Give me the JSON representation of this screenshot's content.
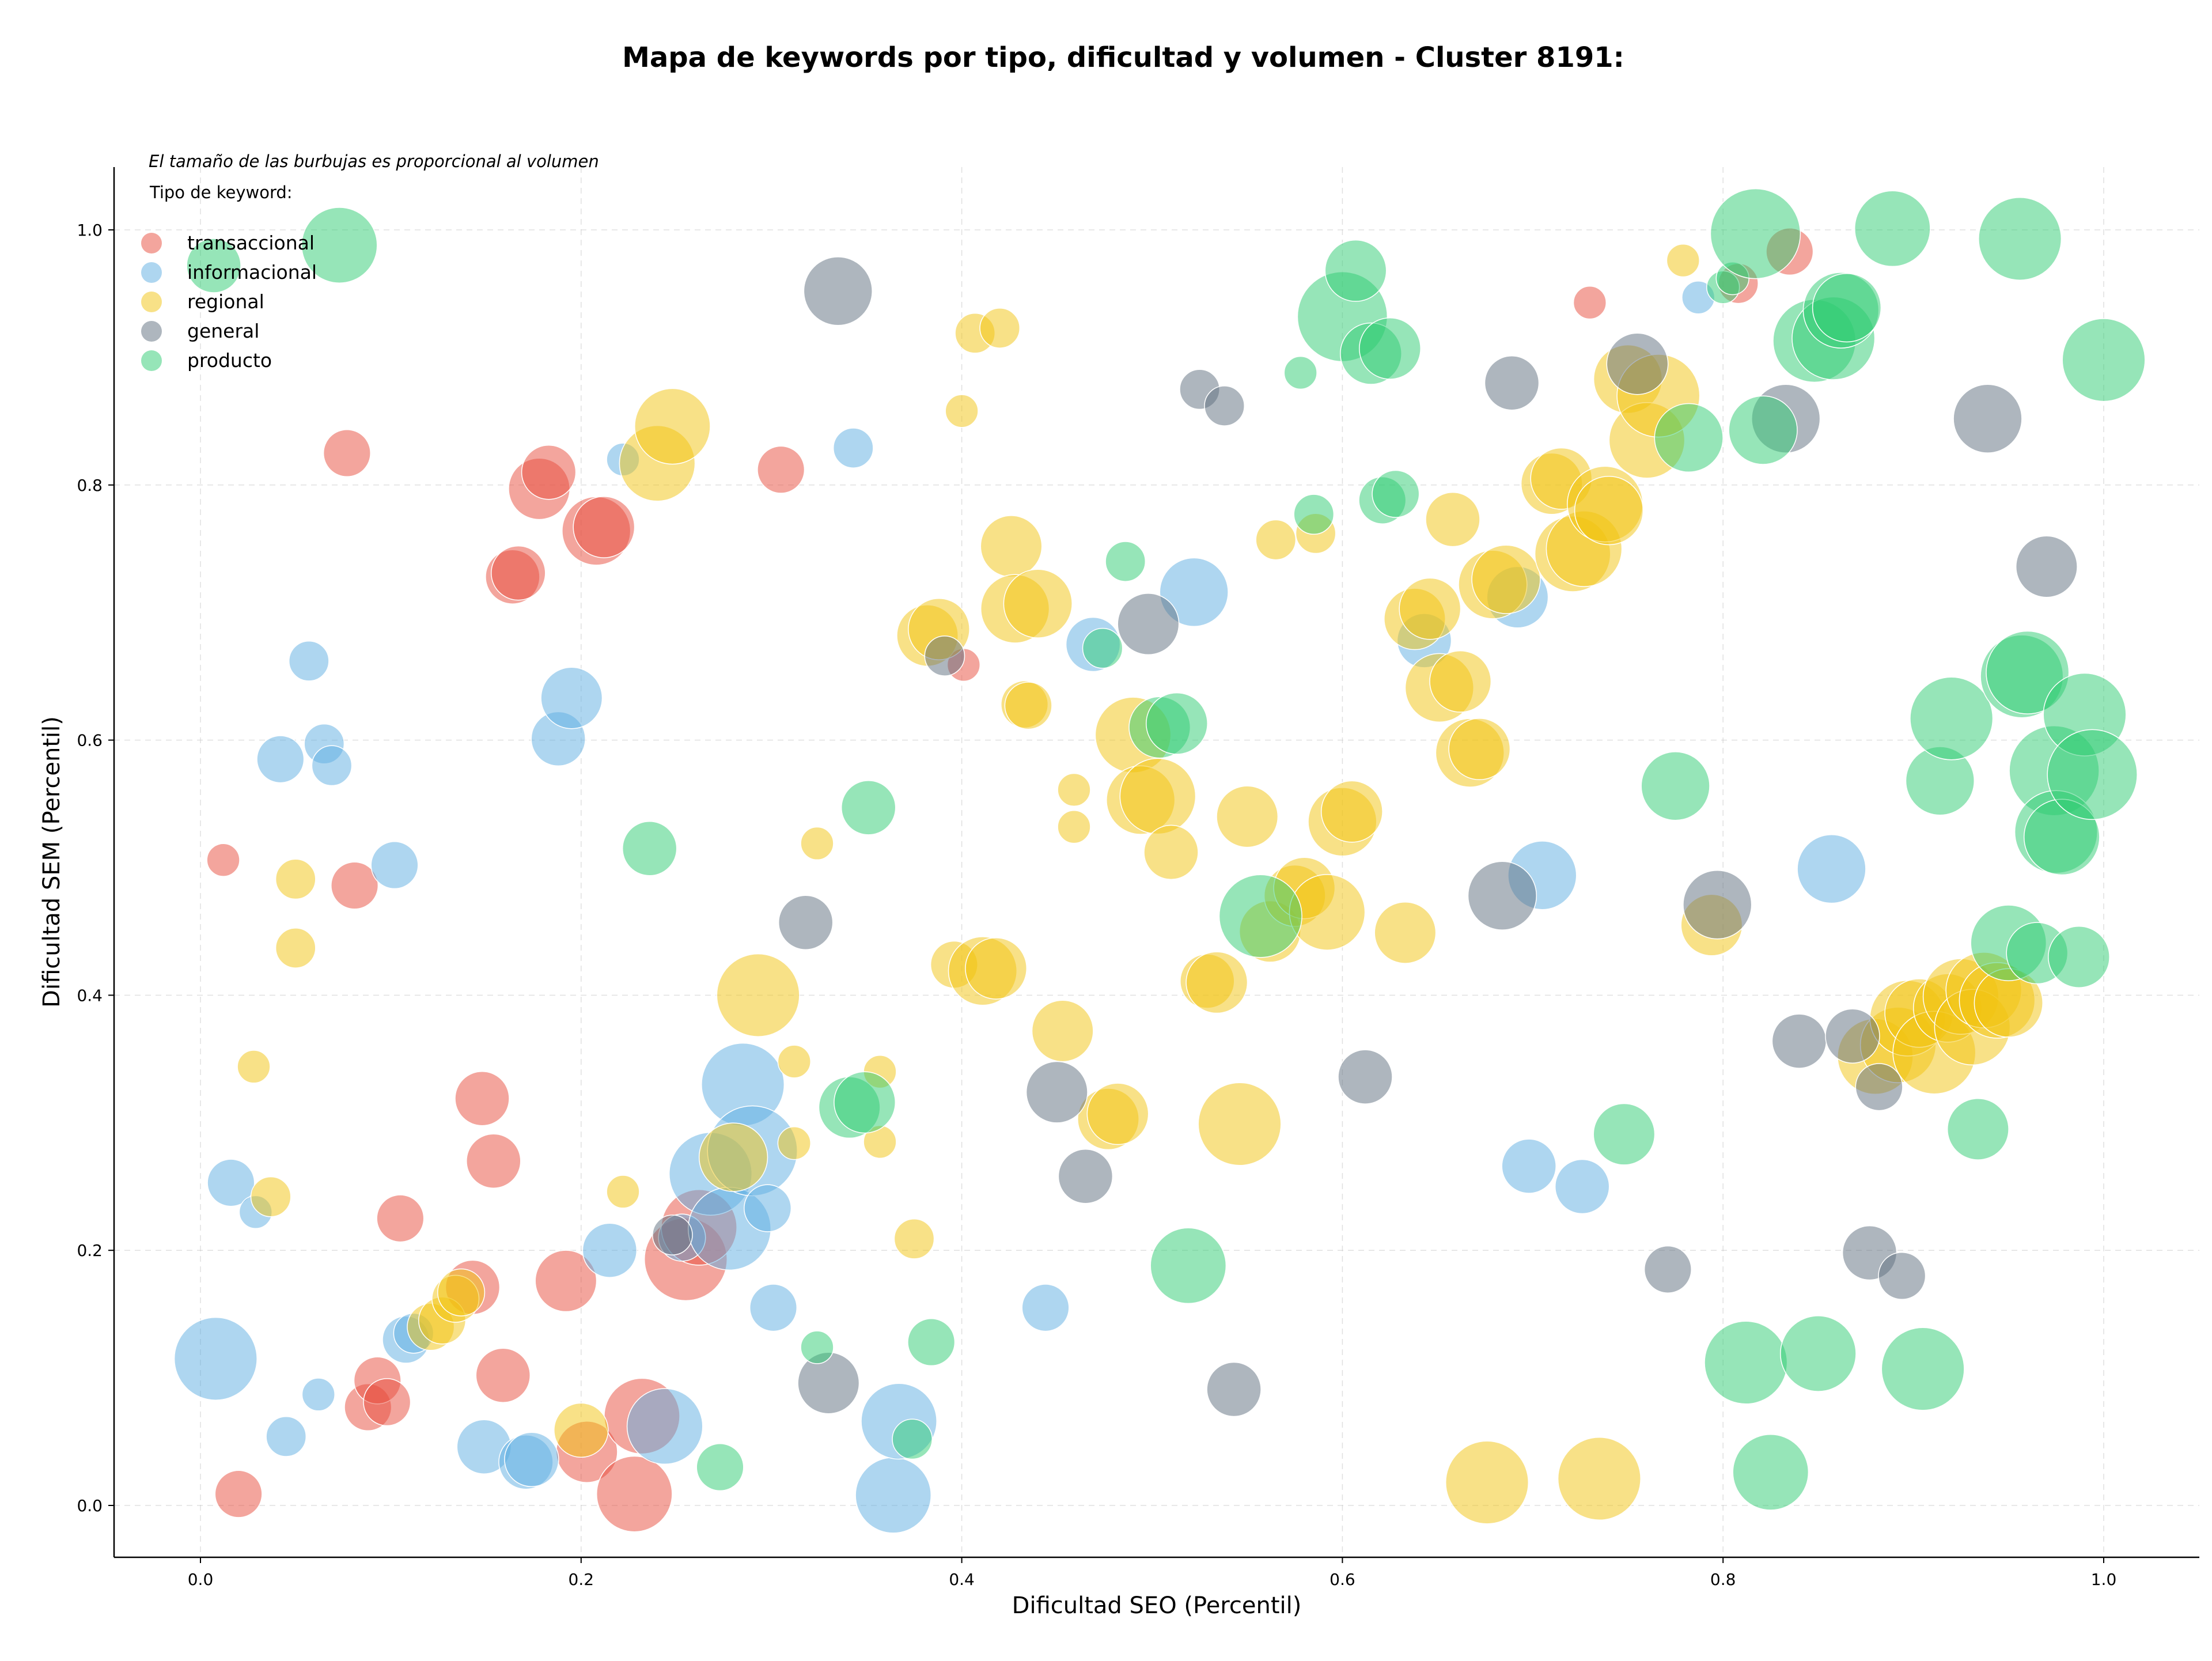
{
  "chart_data": {
    "type": "scatter",
    "title": "Mapa de keywords por tipo, dificultad y volumen - Cluster 8191:",
    "xlabel": "Dificultad SEO (Percentil)",
    "ylabel": "Dificultad SEM (Percentil)",
    "note": "El tamaño de las burbujas es proporcional al volumen",
    "legend_title": "Tipo de keyword:",
    "legend_position": "top-left",
    "xlim": [
      -0.045,
      1.048
    ],
    "ylim": [
      -0.04,
      1.05
    ],
    "xticks": [
      "0.0",
      "0.2",
      "0.4",
      "0.6",
      "0.8",
      "1.0"
    ],
    "yticks": [
      "0.0",
      "0.2",
      "0.4",
      "0.6",
      "0.8",
      "1.0"
    ],
    "grid": true,
    "size_encoding": "volumen (relative 1-10)",
    "series": [
      {
        "name": "transaccional",
        "color": "#e74c3c",
        "points": [
          [
            0.012,
            0.506,
            2
          ],
          [
            0.02,
            0.009,
            4
          ],
          [
            0.077,
            0.825,
            4
          ],
          [
            0.081,
            0.486,
            4
          ],
          [
            0.088,
            0.077,
            4
          ],
          [
            0.093,
            0.098,
            4
          ],
          [
            0.098,
            0.081,
            4
          ],
          [
            0.105,
            0.225,
            4
          ],
          [
            0.143,
            0.171,
            5
          ],
          [
            0.148,
            0.319,
            5
          ],
          [
            0.154,
            0.27,
            5
          ],
          [
            0.159,
            0.102,
            5
          ],
          [
            0.164,
            0.728,
            5
          ],
          [
            0.167,
            0.731,
            5
          ],
          [
            0.178,
            0.797,
            6
          ],
          [
            0.183,
            0.81,
            5
          ],
          [
            0.192,
            0.176,
            6
          ],
          [
            0.203,
            0.042,
            6
          ],
          [
            0.208,
            0.764,
            7
          ],
          [
            0.212,
            0.767,
            6
          ],
          [
            0.228,
            0.009,
            8
          ],
          [
            0.232,
            0.07,
            8
          ],
          [
            0.255,
            0.193,
            9
          ],
          [
            0.262,
            0.218,
            8
          ],
          [
            0.305,
            0.812,
            4
          ],
          [
            0.401,
            0.659,
            2
          ],
          [
            0.73,
            0.943,
            2
          ],
          [
            0.808,
            0.958,
            3
          ],
          [
            0.835,
            0.983,
            4
          ]
        ]
      },
      {
        "name": "informacional",
        "color": "#5dade2",
        "points": [
          [
            0.008,
            0.115,
            9
          ],
          [
            0.016,
            0.253,
            4
          ],
          [
            0.029,
            0.23,
            2
          ],
          [
            0.042,
            0.585,
            4
          ],
          [
            0.045,
            0.054,
            3
          ],
          [
            0.057,
            0.662,
            3
          ],
          [
            0.062,
            0.087,
            2
          ],
          [
            0.065,
            0.597,
            3
          ],
          [
            0.069,
            0.58,
            3
          ],
          [
            0.102,
            0.502,
            4
          ],
          [
            0.108,
            0.13,
            4
          ],
          [
            0.112,
            0.135,
            3
          ],
          [
            0.149,
            0.046,
            5
          ],
          [
            0.171,
            0.034,
            5
          ],
          [
            0.174,
            0.036,
            5
          ],
          [
            0.188,
            0.601,
            5
          ],
          [
            0.195,
            0.633,
            6
          ],
          [
            0.215,
            0.2,
            5
          ],
          [
            0.222,
            0.82,
            2
          ],
          [
            0.244,
            0.062,
            8
          ],
          [
            0.253,
            0.21,
            4
          ],
          [
            0.268,
            0.26,
            9
          ],
          [
            0.278,
            0.217,
            9
          ],
          [
            0.285,
            0.33,
            9
          ],
          [
            0.29,
            0.278,
            10
          ],
          [
            0.298,
            0.233,
            4
          ],
          [
            0.301,
            0.155,
            4
          ],
          [
            0.343,
            0.829,
            3
          ],
          [
            0.364,
            0.008,
            8
          ],
          [
            0.367,
            0.066,
            8
          ],
          [
            0.444,
            0.155,
            4
          ],
          [
            0.469,
            0.675,
            5
          ],
          [
            0.522,
            0.716,
            7
          ],
          [
            0.643,
            0.678,
            5
          ],
          [
            0.692,
            0.712,
            6
          ],
          [
            0.698,
            0.266,
            5
          ],
          [
            0.705,
            0.494,
            7
          ],
          [
            0.726,
            0.25,
            5
          ],
          [
            0.787,
            0.947,
            2
          ],
          [
            0.857,
            0.499,
            7
          ]
        ]
      },
      {
        "name": "regional",
        "color": "#f1c40f",
        "points": [
          [
            0.028,
            0.344,
            2
          ],
          [
            0.037,
            0.242,
            3
          ],
          [
            0.05,
            0.491,
            3
          ],
          [
            0.05,
            0.437,
            3
          ],
          [
            0.121,
            0.14,
            4
          ],
          [
            0.127,
            0.145,
            4
          ],
          [
            0.134,
            0.162,
            4
          ],
          [
            0.137,
            0.167,
            4
          ],
          [
            0.2,
            0.059,
            5
          ],
          [
            0.222,
            0.246,
            2
          ],
          [
            0.24,
            0.817,
            8
          ],
          [
            0.248,
            0.846,
            8
          ],
          [
            0.28,
            0.273,
            7
          ],
          [
            0.293,
            0.4,
            9
          ],
          [
            0.312,
            0.348,
            2
          ],
          [
            0.312,
            0.284,
            2
          ],
          [
            0.324,
            0.519,
            2
          ],
          [
            0.357,
            0.34,
            2
          ],
          [
            0.357,
            0.285,
            2
          ],
          [
            0.375,
            0.209,
            3
          ],
          [
            0.382,
            0.682,
            6
          ],
          [
            0.388,
            0.687,
            6
          ],
          [
            0.396,
            0.424,
            4
          ],
          [
            0.4,
            0.858,
            2
          ],
          [
            0.407,
            0.919,
            3
          ],
          [
            0.42,
            0.923,
            3
          ],
          [
            0.411,
            0.419,
            7
          ],
          [
            0.418,
            0.421,
            6
          ],
          [
            0.426,
            0.752,
            6
          ],
          [
            0.428,
            0.703,
            7
          ],
          [
            0.44,
            0.707,
            7
          ],
          [
            0.433,
            0.628,
            4
          ],
          [
            0.435,
            0.627,
            4
          ],
          [
            0.453,
            0.372,
            6
          ],
          [
            0.459,
            0.561,
            2
          ],
          [
            0.459,
            0.532,
            2
          ],
          [
            0.477,
            0.303,
            6
          ],
          [
            0.482,
            0.307,
            6
          ],
          [
            0.49,
            0.604,
            8
          ],
          [
            0.494,
            0.553,
            7
          ],
          [
            0.503,
            0.556,
            8
          ],
          [
            0.51,
            0.512,
            5
          ],
          [
            0.529,
            0.411,
            5
          ],
          [
            0.534,
            0.41,
            6
          ],
          [
            0.546,
            0.299,
            9
          ],
          [
            0.55,
            0.54,
            6
          ],
          [
            0.562,
            0.45,
            6
          ],
          [
            0.565,
            0.757,
            3
          ],
          [
            0.575,
            0.478,
            6
          ],
          [
            0.58,
            0.484,
            6
          ],
          [
            0.586,
            0.762,
            3
          ],
          [
            0.592,
            0.465,
            8
          ],
          [
            0.6,
            0.536,
            7
          ],
          [
            0.605,
            0.544,
            6
          ],
          [
            0.633,
            0.449,
            6
          ],
          [
            0.638,
            0.695,
            6
          ],
          [
            0.646,
            0.703,
            6
          ],
          [
            0.651,
            0.641,
            7
          ],
          [
            0.662,
            0.646,
            6
          ],
          [
            0.658,
            0.773,
            5
          ],
          [
            0.667,
            0.59,
            7
          ],
          [
            0.672,
            0.593,
            6
          ],
          [
            0.676,
            0.018,
            9
          ],
          [
            0.679,
            0.722,
            7
          ],
          [
            0.686,
            0.726,
            7
          ],
          [
            0.71,
            0.801,
            6
          ],
          [
            0.715,
            0.805,
            6
          ],
          [
            0.721,
            0.746,
            8
          ],
          [
            0.727,
            0.75,
            8
          ],
          [
            0.738,
            0.785,
            8
          ],
          [
            0.74,
            0.78,
            7
          ],
          [
            0.735,
            0.021,
            9
          ],
          [
            0.75,
            0.883,
            7
          ],
          [
            0.76,
            0.835,
            8
          ],
          [
            0.766,
            0.87,
            9
          ],
          [
            0.779,
            0.976,
            2
          ],
          [
            0.794,
            0.455,
            6
          ],
          [
            0.88,
            0.352,
            8
          ],
          [
            0.892,
            0.361,
            8
          ],
          [
            0.897,
            0.382,
            8
          ],
          [
            0.903,
            0.386,
            7
          ],
          [
            0.911,
            0.355,
            9
          ],
          [
            0.918,
            0.39,
            7
          ],
          [
            0.925,
            0.399,
            8
          ],
          [
            0.931,
            0.375,
            8
          ],
          [
            0.937,
            0.404,
            8
          ],
          [
            0.944,
            0.396,
            8
          ],
          [
            0.95,
            0.394,
            7
          ]
        ]
      },
      {
        "name": "general",
        "color": "#5d6d7e",
        "points": [
          [
            0.248,
            0.212,
            3
          ],
          [
            0.318,
            0.457,
            5
          ],
          [
            0.33,
            0.096,
            6
          ],
          [
            0.335,
            0.952,
            7
          ],
          [
            0.391,
            0.666,
            3
          ],
          [
            0.45,
            0.324,
            6
          ],
          [
            0.465,
            0.258,
            5
          ],
          [
            0.498,
            0.691,
            6
          ],
          [
            0.525,
            0.875,
            3
          ],
          [
            0.538,
            0.862,
            3
          ],
          [
            0.543,
            0.091,
            5
          ],
          [
            0.612,
            0.336,
            5
          ],
          [
            0.684,
            0.478,
            7
          ],
          [
            0.689,
            0.88,
            5
          ],
          [
            0.755,
            0.895,
            6
          ],
          [
            0.771,
            0.185,
            4
          ],
          [
            0.797,
            0.471,
            7
          ],
          [
            0.833,
            0.852,
            7
          ],
          [
            0.84,
            0.364,
            5
          ],
          [
            0.868,
            0.368,
            5
          ],
          [
            0.877,
            0.198,
            5
          ],
          [
            0.882,
            0.328,
            4
          ],
          [
            0.894,
            0.18,
            4
          ],
          [
            0.939,
            0.852,
            7
          ],
          [
            0.97,
            0.736,
            6
          ]
        ]
      },
      {
        "name": "producto",
        "color": "#2ecc71",
        "points": [
          [
            0.007,
            0.972,
            5
          ],
          [
            0.073,
            0.988,
            8
          ],
          [
            0.236,
            0.515,
            5
          ],
          [
            0.273,
            0.03,
            4
          ],
          [
            0.324,
            0.124,
            2
          ],
          [
            0.341,
            0.312,
            6
          ],
          [
            0.349,
            0.316,
            6
          ],
          [
            0.351,
            0.547,
            5
          ],
          [
            0.374,
            0.052,
            3
          ],
          [
            0.384,
            0.128,
            4
          ],
          [
            0.474,
            0.672,
            3
          ],
          [
            0.486,
            0.74,
            3
          ],
          [
            0.504,
            0.61,
            6
          ],
          [
            0.513,
            0.613,
            6
          ],
          [
            0.519,
            0.188,
            8
          ],
          [
            0.557,
            0.462,
            9
          ],
          [
            0.578,
            0.888,
            2
          ],
          [
            0.585,
            0.777,
            3
          ],
          [
            0.6,
            0.932,
            10
          ],
          [
            0.607,
            0.968,
            6
          ],
          [
            0.615,
            0.903,
            6
          ],
          [
            0.621,
            0.788,
            4
          ],
          [
            0.625,
            0.907,
            6
          ],
          [
            0.628,
            0.793,
            4
          ],
          [
            0.748,
            0.291,
            6
          ],
          [
            0.775,
            0.564,
            7
          ],
          [
            0.782,
            0.837,
            7
          ],
          [
            0.8,
            0.955,
            2
          ],
          [
            0.805,
            0.962,
            2
          ],
          [
            0.812,
            0.112,
            9
          ],
          [
            0.817,
            0.997,
            10
          ],
          [
            0.821,
            0.843,
            7
          ],
          [
            0.825,
            0.026,
            8
          ],
          [
            0.85,
            0.119,
            8
          ],
          [
            0.848,
            0.913,
            9
          ],
          [
            0.858,
            0.915,
            9
          ],
          [
            0.862,
            0.937,
            8
          ],
          [
            0.865,
            0.939,
            7
          ],
          [
            0.889,
            1.001,
            8
          ],
          [
            0.905,
            0.107,
            9
          ],
          [
            0.914,
            0.568,
            7
          ],
          [
            0.92,
            0.617,
            9
          ],
          [
            0.934,
            0.295,
            6
          ],
          [
            0.95,
            0.441,
            8
          ],
          [
            0.956,
            0.993,
            9
          ],
          [
            0.957,
            0.65,
            9
          ],
          [
            0.96,
            0.653,
            9
          ],
          [
            0.965,
            0.433,
            6
          ],
          [
            0.974,
            0.576,
            10
          ],
          [
            0.975,
            0.528,
            9
          ],
          [
            0.978,
            0.524,
            8
          ],
          [
            0.987,
            0.43,
            6
          ],
          [
            0.99,
            0.62,
            9
          ],
          [
            0.994,
            0.573,
            10
          ],
          [
            1.0,
            0.898,
            9
          ]
        ]
      }
    ]
  }
}
